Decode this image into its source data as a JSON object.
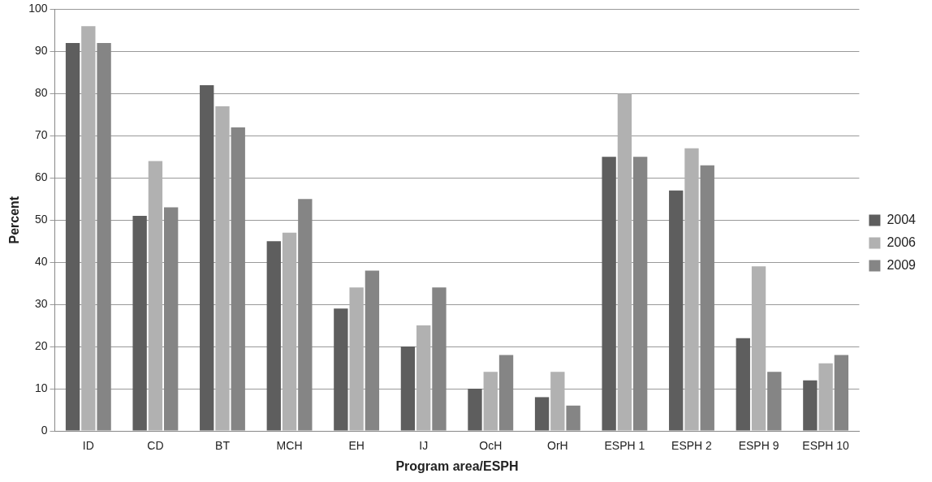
{
  "chart_data": {
    "type": "bar",
    "xlabel": "Program area/ESPH",
    "ylabel": "Percent",
    "categories": [
      "ID",
      "CD",
      "BT",
      "MCH",
      "EH",
      "IJ",
      "OcH",
      "OrH",
      "ESPH 1",
      "ESPH 2",
      "ESPH 9",
      "ESPH 10"
    ],
    "series": [
      {
        "name": "2004",
        "color": "#5e5e5e",
        "values": [
          92,
          51,
          82,
          45,
          29,
          20,
          10,
          8,
          65,
          57,
          22,
          12
        ]
      },
      {
        "name": "2006",
        "color": "#b1b1b1",
        "values": [
          96,
          64,
          77,
          47,
          34,
          25,
          14,
          14,
          80,
          67,
          39,
          16
        ]
      },
      {
        "name": "2009",
        "color": "#858585",
        "values": [
          92,
          53,
          72,
          55,
          38,
          34,
          18,
          6,
          65,
          63,
          14,
          18
        ]
      }
    ],
    "ylim": [
      0,
      100
    ],
    "yticks": [
      0,
      10,
      20,
      30,
      40,
      50,
      60,
      70,
      80,
      90,
      100
    ],
    "grid": "y",
    "legend": "right"
  }
}
